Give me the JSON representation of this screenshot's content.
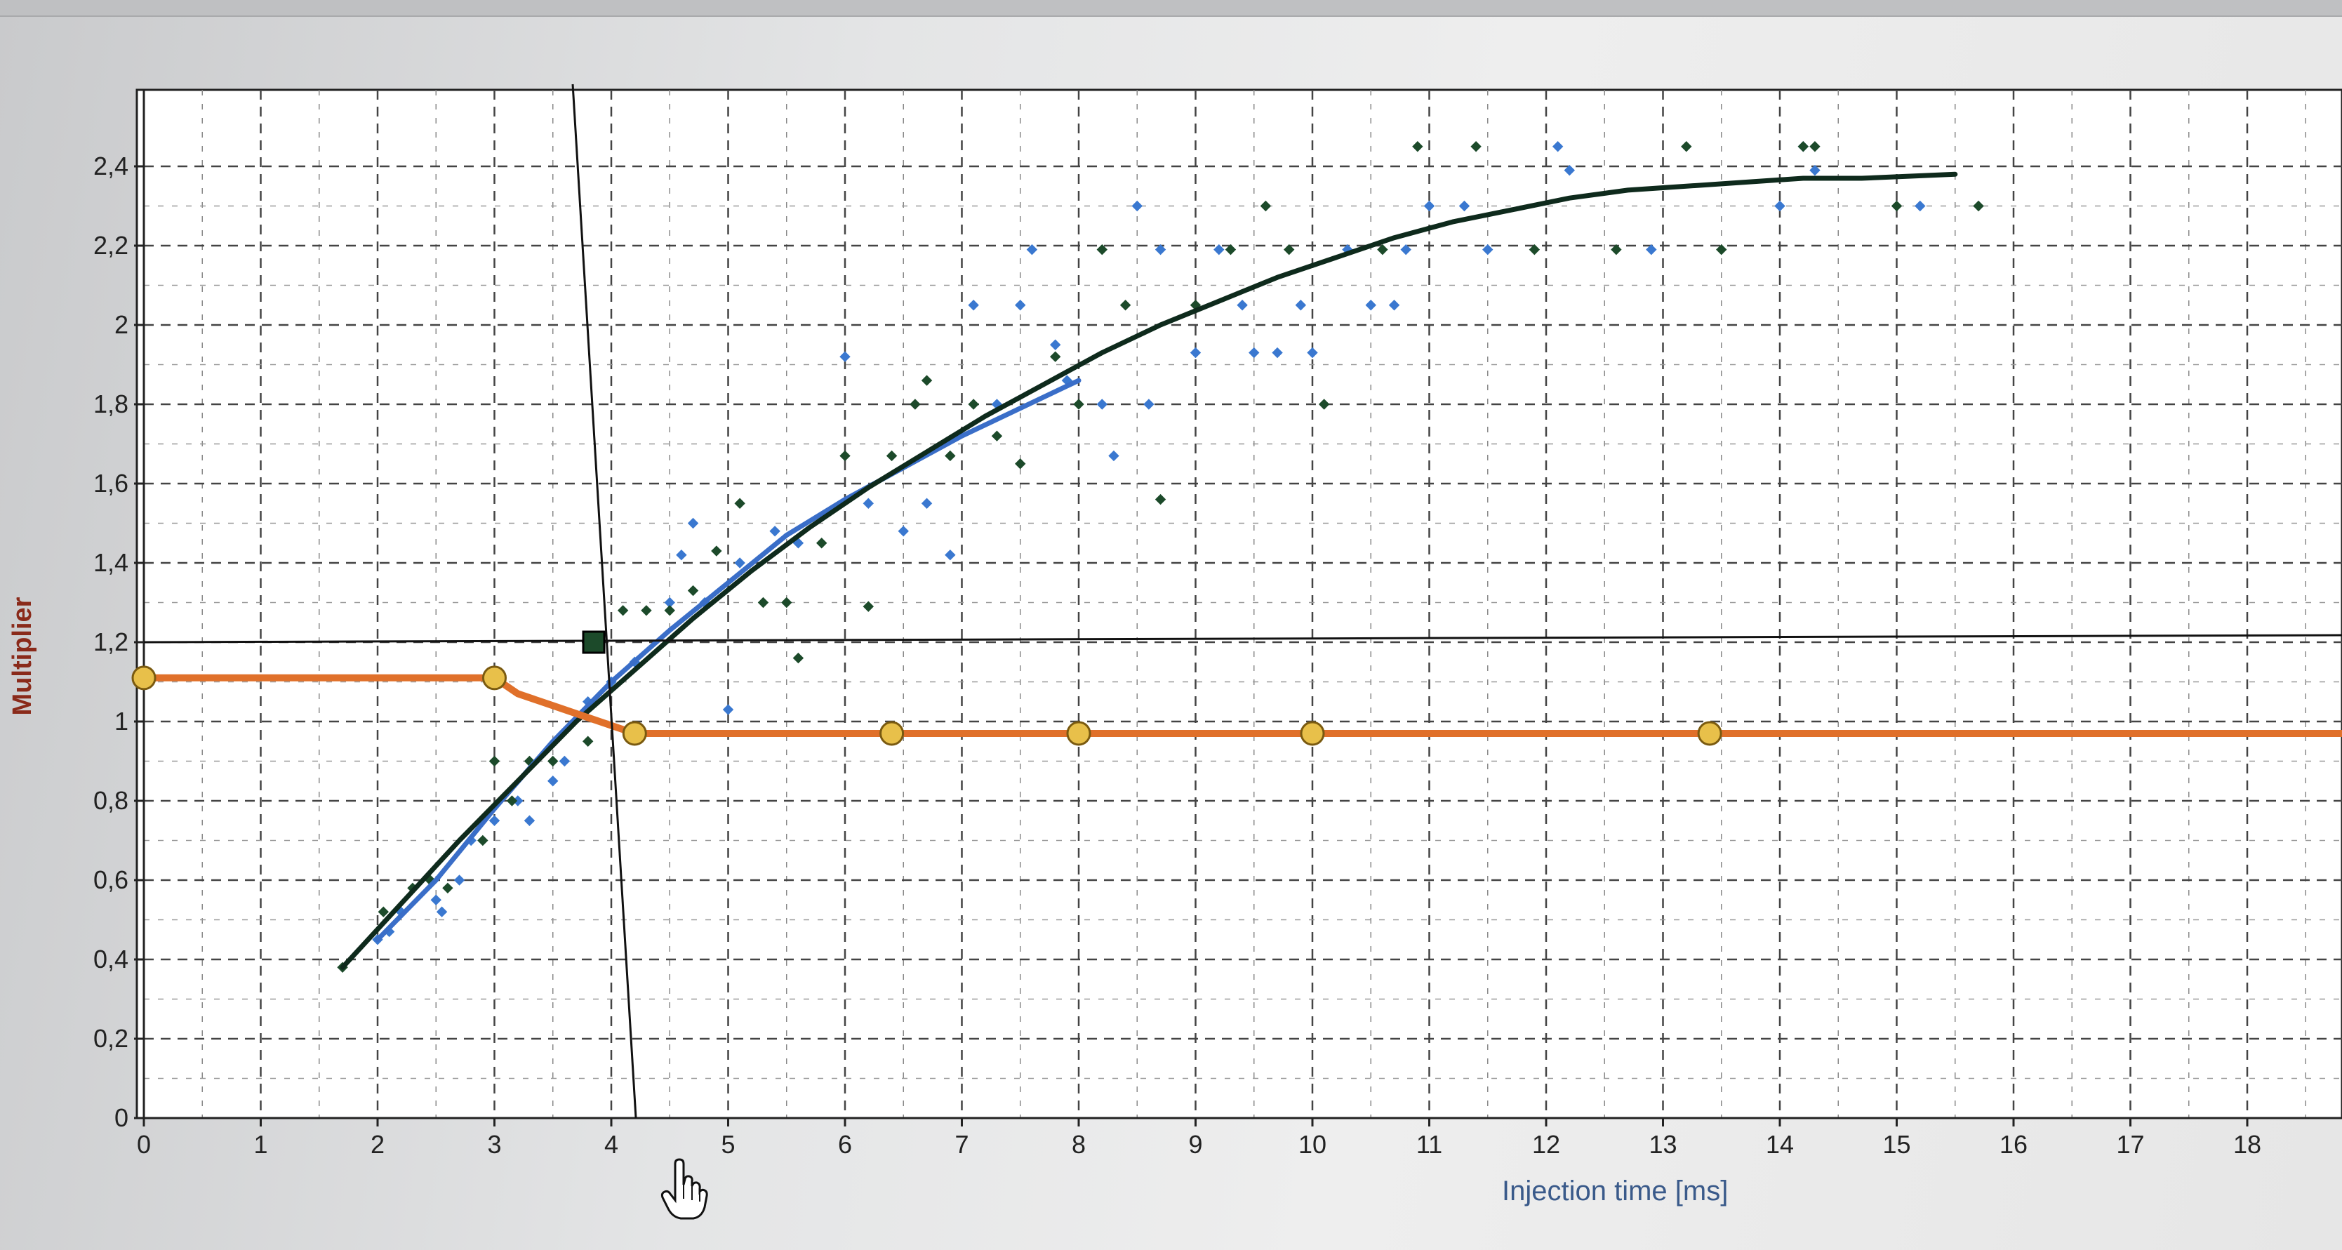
{
  "chart_data": {
    "type": "scatter",
    "title": "",
    "xlabel": "Injection time [ms]",
    "ylabel": "Multiplier",
    "xlim": [
      0,
      19
    ],
    "ylim": [
      0,
      2.6
    ],
    "x_ticks": [
      "0",
      "1",
      "2",
      "3",
      "4",
      "5",
      "6",
      "7",
      "8",
      "9",
      "10",
      "11",
      "12",
      "13",
      "14",
      "15",
      "16",
      "17",
      "18"
    ],
    "y_ticks": [
      "0",
      "0,2",
      "0,4",
      "0,6",
      "0,8",
      "1",
      "1,2",
      "1,4",
      "1,6",
      "1,8",
      "2",
      "2,2",
      "2,4"
    ],
    "grid": true,
    "crosshair": {
      "x": 3.85,
      "y": 1.2
    },
    "series": [
      {
        "color": "#3a78d0",
        "style": "markers",
        "points": [
          [
            2,
            0.45
          ],
          [
            2.1,
            0.47
          ],
          [
            2.2,
            0.52
          ],
          [
            2.5,
            0.55
          ],
          [
            2.55,
            0.52
          ],
          [
            2.7,
            0.6
          ],
          [
            2.8,
            0.7
          ],
          [
            3,
            0.75
          ],
          [
            3.2,
            0.8
          ],
          [
            3.3,
            0.75
          ],
          [
            3.5,
            0.85
          ],
          [
            3.6,
            0.9
          ],
          [
            3.8,
            1.05
          ],
          [
            4,
            1.1
          ],
          [
            4.2,
            1.15
          ],
          [
            4.5,
            1.3
          ],
          [
            4.6,
            1.42
          ],
          [
            4.7,
            1.5
          ],
          [
            4.8,
            1.3
          ],
          [
            5,
            1.03
          ],
          [
            5.1,
            1.4
          ],
          [
            5.4,
            1.48
          ],
          [
            5.6,
            1.45
          ],
          [
            6,
            1.92
          ],
          [
            6.2,
            1.55
          ],
          [
            6.5,
            1.48
          ],
          [
            6.7,
            1.55
          ],
          [
            6.9,
            1.42
          ],
          [
            7.1,
            2.05
          ],
          [
            7.3,
            1.8
          ],
          [
            7.5,
            2.05
          ],
          [
            7.6,
            2.19
          ],
          [
            7.8,
            1.95
          ],
          [
            7.9,
            1.86
          ],
          [
            8.2,
            1.8
          ],
          [
            8.3,
            1.67
          ],
          [
            8.5,
            2.3
          ],
          [
            8.6,
            1.8
          ],
          [
            8.7,
            2.19
          ],
          [
            9,
            1.93
          ],
          [
            9.2,
            2.19
          ],
          [
            9.4,
            2.05
          ],
          [
            9.5,
            1.93
          ],
          [
            9.7,
            1.93
          ],
          [
            9.9,
            2.05
          ],
          [
            10,
            1.93
          ],
          [
            10.3,
            2.19
          ],
          [
            10.5,
            2.05
          ],
          [
            10.7,
            2.05
          ],
          [
            10.8,
            2.19
          ],
          [
            11,
            2.3
          ],
          [
            11.3,
            2.3
          ],
          [
            11.5,
            2.19
          ],
          [
            12.1,
            2.45
          ],
          [
            12.2,
            2.39
          ],
          [
            12.9,
            2.19
          ],
          [
            14,
            2.3
          ],
          [
            14.2,
            2.45
          ],
          [
            14.3,
            2.39
          ],
          [
            15.2,
            2.3
          ]
        ]
      },
      {
        "color": "#1c4a2a",
        "style": "markers",
        "points": [
          [
            1.7,
            0.38
          ],
          [
            2.05,
            0.52
          ],
          [
            2.3,
            0.58
          ],
          [
            2.45,
            0.6
          ],
          [
            2.6,
            0.58
          ],
          [
            2.9,
            0.7
          ],
          [
            3,
            0.9
          ],
          [
            3.15,
            0.8
          ],
          [
            3.3,
            0.9
          ],
          [
            3.5,
            0.9
          ],
          [
            3.8,
            0.95
          ],
          [
            4.1,
            1.28
          ],
          [
            4.3,
            1.28
          ],
          [
            4.5,
            1.28
          ],
          [
            4.7,
            1.33
          ],
          [
            4.9,
            1.43
          ],
          [
            5.1,
            1.55
          ],
          [
            5.3,
            1.3
          ],
          [
            5.5,
            1.3
          ],
          [
            5.6,
            1.16
          ],
          [
            5.8,
            1.45
          ],
          [
            6,
            1.67
          ],
          [
            6.2,
            1.29
          ],
          [
            6.4,
            1.67
          ],
          [
            6.6,
            1.8
          ],
          [
            6.7,
            1.86
          ],
          [
            6.9,
            1.67
          ],
          [
            7.1,
            1.8
          ],
          [
            7.3,
            1.72
          ],
          [
            7.5,
            1.65
          ],
          [
            7.8,
            1.92
          ],
          [
            8,
            1.8
          ],
          [
            8.2,
            2.19
          ],
          [
            8.4,
            2.05
          ],
          [
            8.7,
            1.56
          ],
          [
            9,
            2.05
          ],
          [
            9.3,
            2.19
          ],
          [
            9.6,
            2.3
          ],
          [
            9.8,
            2.19
          ],
          [
            10.1,
            1.8
          ],
          [
            10.6,
            2.19
          ],
          [
            10.9,
            2.45
          ],
          [
            11.4,
            2.45
          ],
          [
            11.9,
            2.19
          ],
          [
            12.6,
            2.19
          ],
          [
            13.2,
            2.45
          ],
          [
            13.5,
            2.19
          ],
          [
            14.2,
            2.45
          ],
          [
            14.3,
            2.45
          ],
          [
            15,
            2.3
          ],
          [
            15.7,
            2.3
          ]
        ]
      },
      {
        "color": "#3a6ec8",
        "style": "line",
        "points": [
          [
            2,
            0.45
          ],
          [
            2.5,
            0.6
          ],
          [
            3,
            0.78
          ],
          [
            3.5,
            0.95
          ],
          [
            4,
            1.1
          ],
          [
            4.5,
            1.23
          ],
          [
            5,
            1.35
          ],
          [
            5.5,
            1.47
          ],
          [
            6,
            1.56
          ],
          [
            7,
            1.72
          ],
          [
            8,
            1.86
          ]
        ]
      },
      {
        "color": "#0e2a1c",
        "style": "line",
        "points": [
          [
            1.7,
            0.38
          ],
          [
            2.2,
            0.54
          ],
          [
            2.7,
            0.7
          ],
          [
            3.2,
            0.85
          ],
          [
            3.7,
            1.0
          ],
          [
            4.2,
            1.13
          ],
          [
            4.7,
            1.26
          ],
          [
            5.2,
            1.38
          ],
          [
            5.7,
            1.49
          ],
          [
            6.2,
            1.59
          ],
          [
            6.7,
            1.68
          ],
          [
            7.2,
            1.77
          ],
          [
            7.7,
            1.85
          ],
          [
            8.2,
            1.93
          ],
          [
            8.7,
            2.0
          ],
          [
            9.2,
            2.06
          ],
          [
            9.7,
            2.12
          ],
          [
            10.2,
            2.17
          ],
          [
            10.7,
            2.22
          ],
          [
            11.2,
            2.26
          ],
          [
            11.7,
            2.29
          ],
          [
            12.2,
            2.32
          ],
          [
            12.7,
            2.34
          ],
          [
            13.2,
            2.35
          ],
          [
            13.7,
            2.36
          ],
          [
            14.2,
            2.37
          ],
          [
            14.7,
            2.37
          ],
          [
            15.5,
            2.38
          ]
        ]
      },
      {
        "color": "#e0702a",
        "style": "line-with-handles",
        "handle_color": "#e8c04a",
        "points": [
          [
            0,
            1.11
          ],
          [
            3,
            1.11
          ],
          [
            3.2,
            1.07
          ],
          [
            3.5,
            1.04
          ],
          [
            3.8,
            1.01
          ],
          [
            4.2,
            0.97
          ],
          [
            6.4,
            0.97
          ],
          [
            8,
            0.97
          ],
          [
            10,
            0.97
          ],
          [
            13.4,
            0.97
          ],
          [
            19,
            0.97
          ]
        ],
        "handles": [
          [
            0,
            1.11
          ],
          [
            3,
            1.11
          ],
          [
            4.2,
            0.97
          ],
          [
            6.4,
            0.97
          ],
          [
            8,
            0.97
          ],
          [
            10,
            0.97
          ],
          [
            13.4,
            0.97
          ]
        ]
      }
    ]
  }
}
